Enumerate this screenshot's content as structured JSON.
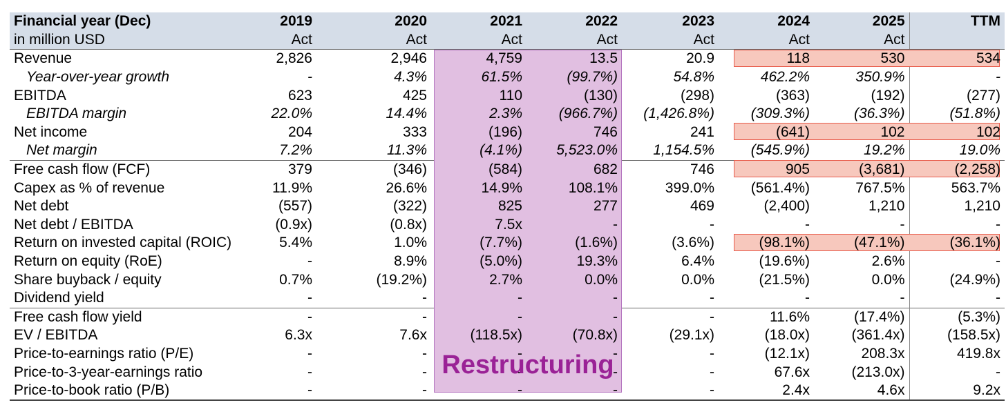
{
  "header": {
    "title_col": "Financial year (Dec)",
    "unit": "in million USD",
    "years": [
      "2019",
      "2020",
      "2021",
      "2022",
      "2023",
      "2024",
      "2025",
      "TTM"
    ],
    "types": [
      "Act",
      "Act",
      "Act",
      "Act",
      "Act",
      "Act",
      "Act",
      ""
    ]
  },
  "rows": [
    {
      "label": "Revenue",
      "values": [
        "2,826",
        "2,946",
        "4,759",
        "13.5",
        "20.9",
        "118",
        "530",
        "534"
      ]
    },
    {
      "label": "Year-over-year growth",
      "values": [
        "-",
        "4.3%",
        "61.5%",
        "(99.7%)",
        "54.8%",
        "462.2%",
        "350.9%",
        "-"
      ]
    },
    {
      "label": "EBITDA",
      "values": [
        "623",
        "425",
        "110",
        "(130)",
        "(298)",
        "(363)",
        "(192)",
        "(277)"
      ]
    },
    {
      "label": "EBITDA margin",
      "values": [
        "22.0%",
        "14.4%",
        "2.3%",
        "(966.7%)",
        "(1,426.8%)",
        "(309.3%)",
        "(36.3%)",
        "(51.8%)"
      ]
    },
    {
      "label": "Net income",
      "values": [
        "204",
        "333",
        "(196)",
        "746",
        "241",
        "(641)",
        "102",
        "102"
      ]
    },
    {
      "label": "Net margin",
      "values": [
        "7.2%",
        "11.3%",
        "(4.1%)",
        "5,523.0%",
        "1,154.5%",
        "(545.9%)",
        "19.2%",
        "19.0%"
      ]
    },
    {
      "label": "Free cash flow (FCF)",
      "values": [
        "379",
        "(346)",
        "(584)",
        "682",
        "746",
        "905",
        "(3,681)",
        "(2,258)"
      ]
    },
    {
      "label": "Capex as % of revenue",
      "values": [
        "11.9%",
        "26.6%",
        "14.9%",
        "108.1%",
        "399.0%",
        "(561.4%)",
        "767.5%",
        "563.7%"
      ]
    },
    {
      "label": "Net debt",
      "values": [
        "(557)",
        "(322)",
        "825",
        "277",
        "469",
        "(2,400)",
        "1,210",
        "1,210"
      ]
    },
    {
      "label": "Net debt / EBITDA",
      "values": [
        "(0.9x)",
        "(0.8x)",
        "7.5x",
        "-",
        "-",
        "-",
        "-",
        "-"
      ]
    },
    {
      "label": "Return on invested capital (ROIC)",
      "values": [
        "5.4%",
        "1.0%",
        "(7.7%)",
        "(1.6%)",
        "(3.6%)",
        "(98.1%)",
        "(47.1%)",
        "(36.1%)"
      ]
    },
    {
      "label": "Return on equity (RoE)",
      "values": [
        "-",
        "8.9%",
        "(5.0%)",
        "19.3%",
        "6.4%",
        "(19.6%)",
        "2.6%",
        "-"
      ]
    },
    {
      "label": "Share buyback / equity",
      "values": [
        "0.7%",
        "(19.2%)",
        "2.7%",
        "0.0%",
        "0.0%",
        "(21.5%)",
        "0.0%",
        "(24.9%)"
      ]
    },
    {
      "label": "Dividend yield",
      "values": [
        "-",
        "-",
        "-",
        "-",
        "-",
        "-",
        "-",
        "-"
      ]
    },
    {
      "label": "Free cash flow yield",
      "values": [
        "-",
        "-",
        "-",
        "-",
        "-",
        "11.6%",
        "(17.4%)",
        "(5.3%)"
      ]
    },
    {
      "label": "EV / EBITDA",
      "values": [
        "6.3x",
        "7.6x",
        "(118.5x)",
        "(70.8x)",
        "(29.1x)",
        "(18.0x)",
        "(361.4x)",
        "(158.5x)"
      ]
    },
    {
      "label": "Price-to-earnings ratio (P/E)",
      "values": [
        "-",
        "-",
        "-",
        "-",
        "-",
        "(12.1x)",
        "208.3x",
        "419.8x"
      ]
    },
    {
      "label": "Price-to-3-year-earnings ratio",
      "values": [
        "-",
        "-",
        "-",
        "-",
        "-",
        "67.6x",
        "(213.0x)",
        "-"
      ]
    },
    {
      "label": "Price-to-book ratio (P/B)",
      "values": [
        "-",
        "-",
        "-",
        "-",
        "-",
        "2.4x",
        "4.6x",
        "9.2x"
      ]
    }
  ],
  "annotation": {
    "restructuring": "Restructuring"
  },
  "colors": {
    "header_bg": "#d5dde8",
    "restructuring_fill": "#e1bfe1",
    "restructuring_text": "#9a2296",
    "highlight_fill": "#f7c8bd",
    "highlight_border": "#e85a4a"
  }
}
